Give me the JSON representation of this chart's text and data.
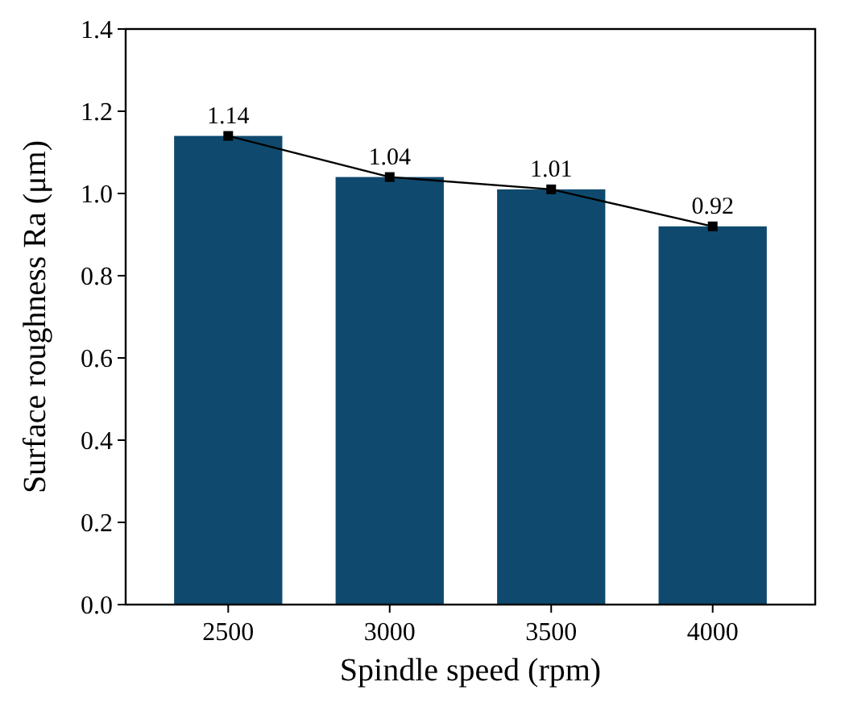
{
  "chart_data": {
    "type": "bar",
    "xlabel": "Spindle speed (rpm)",
    "ylabel": "Surface roughness Ra (μm)",
    "categories": [
      "2500",
      "3000",
      "3500",
      "4000"
    ],
    "series": [
      {
        "color": "#0f4a6e",
        "values": [
          1.14,
          1.04,
          1.01,
          0.92
        ]
      },
      {
        "type": "line",
        "color": "#000000",
        "marker": "square",
        "line_style": "solid",
        "values": [
          1.14,
          1.04,
          1.01,
          0.92
        ],
        "value_labels": [
          "1.14",
          "1.04",
          "1.01",
          "0.92"
        ]
      }
    ],
    "ylim": [
      0,
      1.4
    ],
    "yticks": [
      {
        "value": 0,
        "label": "0.0"
      },
      {
        "value": 0.2,
        "label": "0.2"
      },
      {
        "value": 0.4,
        "label": "0.4"
      },
      {
        "value": 0.6,
        "label": "0.6"
      },
      {
        "value": 0.8,
        "label": "0.8"
      },
      {
        "value": 1,
        "label": "1.0"
      },
      {
        "value": 1.2,
        "label": "1.2"
      },
      {
        "value": 1.4,
        "label": "1.4"
      }
    ],
    "grid": false
  }
}
